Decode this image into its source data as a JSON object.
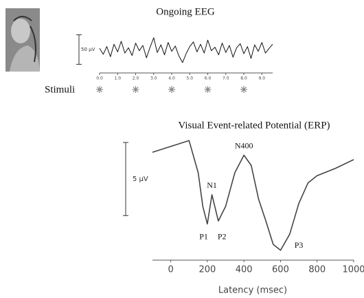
{
  "chart_data": [
    {
      "type": "line",
      "title": "Ongoing EEG",
      "x": [
        0,
        0.2,
        0.4,
        0.6,
        0.8,
        1,
        1.2,
        1.4,
        1.6,
        1.8,
        2,
        2.2,
        2.4,
        2.6,
        2.8,
        3,
        3.2,
        3.4,
        3.6,
        3.8,
        4,
        4.2,
        4.4,
        4.6,
        4.8,
        5,
        5.2,
        5.4,
        5.6,
        5.8,
        6,
        6.2,
        6.4,
        6.6,
        6.8,
        7,
        7.2,
        7.4,
        7.6,
        7.8,
        8,
        8.2,
        8.4,
        8.6,
        8.8,
        9,
        9.2,
        9.4,
        9.6
      ],
      "values": [
        2,
        -8,
        5,
        -12,
        9,
        -4,
        14,
        -6,
        3,
        -10,
        11,
        -2,
        7,
        -14,
        4,
        20,
        -5,
        8,
        -9,
        12,
        -3,
        6,
        -11,
        -22,
        -7,
        5,
        13,
        -4,
        9,
        -6,
        16,
        -2,
        4,
        -9,
        11,
        -5,
        7,
        -13,
        3,
        10,
        -7,
        5,
        -15,
        8,
        -3,
        12,
        -6,
        2,
        9
      ],
      "color": "#111111",
      "xlim": [
        0,
        9.6
      ],
      "xticks": [
        {
          "value": 0,
          "label": "0.0"
        },
        {
          "value": 1,
          "label": "1.0"
        },
        {
          "value": 2,
          "label": "2.0"
        },
        {
          "value": 3,
          "label": "3.0"
        },
        {
          "value": 4,
          "label": "4.0"
        },
        {
          "value": 5,
          "label": "5.0"
        },
        {
          "value": 6,
          "label": "6.0"
        },
        {
          "value": 7,
          "label": "7.0"
        },
        {
          "value": 8,
          "label": "8.0"
        },
        {
          "value": 9,
          "label": "9.0"
        }
      ],
      "ylim": [
        -35,
        35
      ],
      "scale_bar": {
        "value": 50,
        "label": "50 µV"
      },
      "stimuli": {
        "label": "Stimuli",
        "x": [
          0,
          2,
          4,
          6,
          8
        ],
        "color": "#888888"
      }
    },
    {
      "type": "line",
      "title": "Visual Event-related Potential (ERP)",
      "x": [
        -100,
        0,
        100,
        150,
        175,
        200,
        225,
        260,
        300,
        350,
        400,
        440,
        480,
        520,
        560,
        600,
        650,
        700,
        750,
        800,
        900,
        1000
      ],
      "values": [
        -4.0,
        -4.4,
        -4.8,
        -2.6,
        -0.3,
        0.9,
        -1.1,
        0.7,
        -0.3,
        -2.6,
        -3.8,
        -3.1,
        -0.8,
        0.7,
        2.3,
        2.7,
        1.6,
        -0.5,
        -1.9,
        -2.4,
        -2.9,
        -3.5
      ],
      "color": "#444444",
      "xlabel": "Latency (msec)",
      "xlim": [
        -100,
        1000
      ],
      "xticks": [
        0,
        200,
        400,
        600,
        800,
        1000
      ],
      "ylim": [
        -5,
        3
      ],
      "y_inverted": true,
      "scale_bar": {
        "value": 5,
        "label": "5 µV"
      },
      "annotations": [
        {
          "text": "N1",
          "x": 225,
          "y": -1.7
        },
        {
          "text": "P1",
          "x": 180,
          "y": 1.8
        },
        {
          "text": "P2",
          "x": 280,
          "y": 1.8
        },
        {
          "text": "N400",
          "x": 400,
          "y": -4.4
        },
        {
          "text": "P3",
          "x": 700,
          "y": 2.4
        }
      ]
    }
  ]
}
